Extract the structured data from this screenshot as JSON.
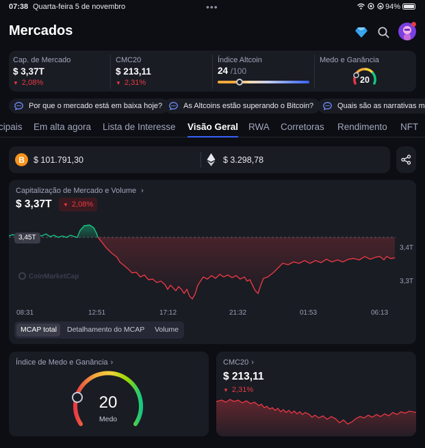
{
  "status": {
    "time": "07:38",
    "date": "Quarta-feira 5 de novembro",
    "battery": "94%"
  },
  "header": {
    "title": "Mercados"
  },
  "metrics": {
    "mcap": {
      "label": "Cap. de Mercado",
      "value": "$ 3,37T",
      "change": "2,08%"
    },
    "cmc20": {
      "label": "CMC20",
      "value": "$ 213,11",
      "change": "2,31%"
    },
    "altcoin": {
      "label": "Índice Altcoin",
      "value": "24",
      "max": "/100",
      "level": 0.24
    },
    "fear": {
      "label": "Medo e Ganância",
      "value": "20"
    }
  },
  "chips": [
    "Por que o mercado está em baixa hoje?",
    "As Altcoins estão superando o Bitcoin?",
    "Quais são as narrativas mais"
  ],
  "tabs": [
    "cipais",
    "Em alta agora",
    "Lista de Interesse",
    "Visão Geral",
    "RWA",
    "Corretoras",
    "Rendimento",
    "NFT"
  ],
  "prices": {
    "btc": "$ 101.791,30",
    "eth": "$ 3.298,78"
  },
  "mcap_chart": {
    "title": "Capitalização de Mercado e Volume",
    "value": "$ 3,37T",
    "change": "2,08%",
    "reference": "3,45T",
    "watermark": "CoinMarketCap",
    "times": [
      "08:31",
      "12:51",
      "17:12",
      "21:32",
      "01:53",
      "06:13"
    ],
    "ylabels": [
      "3,4T",
      "3,3T"
    ],
    "segments": [
      "MCAP total",
      "Detalhamento do MCAP",
      "Volume"
    ]
  },
  "fear_card": {
    "title": "Índice de Medo e Ganância",
    "value": "20",
    "label": "Medo"
  },
  "cmc_card": {
    "title": "CMC20",
    "value": "$ 213,11",
    "change": "2,31%"
  },
  "chart_data": [
    {
      "type": "line",
      "title": "Capitalização de Mercado e Volume",
      "x": [
        "08:31",
        "12:51",
        "17:12",
        "21:32",
        "01:53",
        "06:13"
      ],
      "values": [
        3.45,
        3.45,
        3.36,
        3.3,
        3.38,
        3.37
      ],
      "reference": 3.45,
      "yticks": [
        "3,4T",
        "3,3T"
      ]
    },
    {
      "type": "line",
      "title": "CMC20",
      "values": [
        213.8,
        213.5,
        212.6,
        213.1,
        212.9,
        213.11
      ]
    }
  ],
  "colors": {
    "up": "#16c784",
    "down": "#ea3943",
    "accent": "#3861fb",
    "bg": "#0d0e14",
    "card": "#1a1c24"
  }
}
